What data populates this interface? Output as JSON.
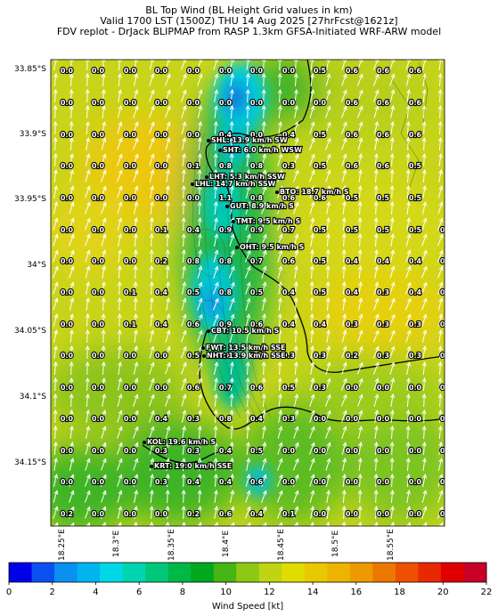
{
  "title": {
    "line1": "BL Top Wind (BL Height Grid values in km)",
    "line2": "Valid 1700 LST (1500Z) THU 14 Aug 2025 [27hrFcst@1621z]",
    "line3": "FDV replot - DrJack BLIPMAP from RASP 1.3km GFSA-Initiated WRF-ARW model"
  },
  "axes": {
    "lat_labels": [
      "33.85°S",
      "33.9°S",
      "33.95°S",
      "34°S",
      "34.05°S",
      "34.1°S",
      "34.15°S"
    ],
    "lon_labels": [
      "18.25°E",
      "18.3°E",
      "18.35°E",
      "18.4°E",
      "18.45°E",
      "18.5°E",
      "18.55°E"
    ]
  },
  "grid_values": [
    [
      "0.0",
      "0.0",
      "0.0",
      "0.0",
      "0.0",
      "0.0",
      "0.0",
      "0.0",
      "0.5",
      "0.6",
      "0.6",
      "0.6",
      ""
    ],
    [
      "0.0",
      "0.0",
      "0.0",
      "0.0",
      "0.0",
      "0.0",
      "0.0",
      "0.0",
      "0.0",
      "0.6",
      "0.6",
      "0.6",
      ""
    ],
    [
      "0.0",
      "0.0",
      "0.0",
      "0.0",
      "0.0",
      "0.4",
      "0.0",
      "0.4",
      "0.5",
      "0.6",
      "0.6",
      "0.6",
      ""
    ],
    [
      "0.0",
      "0.0",
      "0.0",
      "0.0",
      "0.1",
      "0.8",
      "0.8",
      "0.3",
      "0.5",
      "0.6",
      "0.6",
      "0.5",
      ""
    ],
    [
      "0.0",
      "0.0",
      "0.0",
      "0.0",
      "0.0",
      "1.1",
      "0.8",
      "0.6",
      "0.6",
      "0.5",
      "0.5",
      "0.5",
      ""
    ],
    [
      "0.0",
      "0.0",
      "0.0",
      "0.1",
      "0.4",
      "0.9",
      "0.9",
      "0.7",
      "0.5",
      "0.5",
      "0.5",
      "0.5",
      "0.4"
    ],
    [
      "0.0",
      "0.0",
      "0.0",
      "0.2",
      "0.8",
      "0.8",
      "0.7",
      "0.6",
      "0.5",
      "0.4",
      "0.4",
      "0.4",
      "0.4"
    ],
    [
      "0.0",
      "0.0",
      "0.1",
      "0.4",
      "0.5",
      "0.8",
      "0.5",
      "0.4",
      "0.5",
      "0.4",
      "0.3",
      "0.4",
      "0.3"
    ],
    [
      "0.0",
      "0.0",
      "0.1",
      "0.4",
      "0.6",
      "0.9",
      "0.6",
      "0.4",
      "0.4",
      "0.3",
      "0.3",
      "0.3",
      "0.3"
    ],
    [
      "0.0",
      "0.0",
      "0.0",
      "0.0",
      "0.5",
      "0.8",
      "0.5",
      "0.3",
      "0.3",
      "0.2",
      "0.3",
      "0.3",
      "0.0"
    ],
    [
      "0.0",
      "0.0",
      "0.0",
      "0.0",
      "0.6",
      "0.7",
      "0.6",
      "0.5",
      "0.3",
      "0.0",
      "0.0",
      "0.0",
      "0.0"
    ],
    [
      "0.0",
      "0.0",
      "0.0",
      "0.4",
      "0.3",
      "0.8",
      "0.4",
      "0.3",
      "0.0",
      "0.0",
      "0.0",
      "0.0",
      "0.0"
    ],
    [
      "0.0",
      "0.0",
      "0.0",
      "0.3",
      "0.3",
      "0.4",
      "0.5",
      "0.0",
      "0.0",
      "0.0",
      "0.0",
      "0.0",
      "0.0"
    ],
    [
      "0.0",
      "0.0",
      "0.0",
      "0.3",
      "0.4",
      "0.4",
      "0.6",
      "0.0",
      "0.0",
      "0.0",
      "0.0",
      "0.0",
      "0.0"
    ],
    [
      "0.2",
      "0.0",
      "0.0",
      "0.0",
      "0.2",
      "0.6",
      "0.4",
      "0.1",
      "0.0",
      "0.0",
      "0.0",
      "0.0",
      "0.0"
    ]
  ],
  "stations": [
    {
      "label": "SHL: 13.9 km/h SW"
    },
    {
      "label": "SHT: 6.0 km/h WSW"
    },
    {
      "label": "LHT: 5.3 km/h SSW"
    },
    {
      "label": "LHL: 14.7 km/h SSW"
    },
    {
      "label": "BTO: 18.7 km/h S"
    },
    {
      "label": "GUT: 8.9 km/h S"
    },
    {
      "label": "TMT: 9.5 km/h S"
    },
    {
      "label": "OHT: 9.5 km/h S"
    },
    {
      "label": "CBT: 10.5 km/h S"
    },
    {
      "label": "FWT: 13.5 km/h SSE"
    },
    {
      "label": "NHT: 13.9 km/h SSE"
    },
    {
      "label": "KOL: 19.6 km/h S"
    },
    {
      "label": "KRT: 19.0 km/h SSE"
    }
  ],
  "colorbar": {
    "label": "Wind Speed [kt]",
    "ticks": [
      "0",
      "2",
      "4",
      "6",
      "8",
      "10",
      "12",
      "14",
      "16",
      "18",
      "20",
      "22"
    ],
    "colors": [
      "#0000e8",
      "#0a50f0",
      "#0a90f0",
      "#00b4f0",
      "#00d8e8",
      "#00d4b0",
      "#00c878",
      "#00b846",
      "#00a81e",
      "#46b414",
      "#8cc814",
      "#c0d414",
      "#e0dc00",
      "#e8c800",
      "#ecb400",
      "#ec9a00",
      "#ec7800",
      "#ec5000",
      "#e82800",
      "#e00000",
      "#c80028"
    ]
  },
  "map_colors": {
    "base_green": "#3cb428",
    "yellow_green": "#9ccc1e",
    "yellow": "#d8d814",
    "light_yellow": "#e4dc14",
    "orange": "#ecc80a",
    "cyan": "#00ccdc",
    "blue": "#1070e0"
  }
}
